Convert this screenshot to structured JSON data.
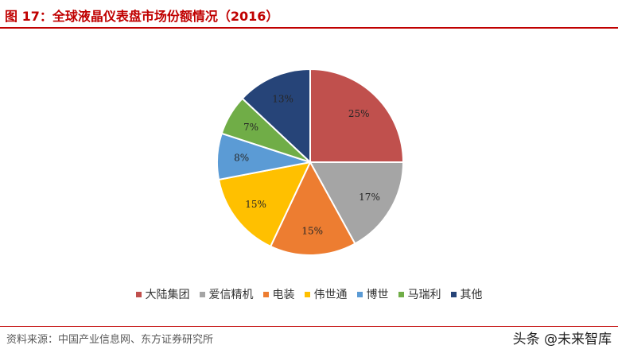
{
  "title": "图 17：全球液晶仪表盘市场份额情况（2016）",
  "source": "资料来源：中国产业信息网、东方证券研究所",
  "watermark": "头条 @未来智库",
  "chart_data": {
    "type": "pie",
    "title": "",
    "legend_position": "bottom",
    "labels": [
      "大陆集团",
      "爱信精机",
      "电装",
      "伟世通",
      "博世",
      "马瑞利",
      "其他"
    ],
    "values": [
      25,
      17,
      15,
      15,
      8,
      7,
      13
    ],
    "data_labels": [
      "25%",
      "17%",
      "15%",
      "15%",
      "8%",
      "7%",
      "13%"
    ],
    "colors": [
      "#c0504d",
      "#a5a5a5",
      "#ed7d31",
      "#ffc000",
      "#5b9bd5",
      "#70ad47",
      "#264478"
    ]
  }
}
